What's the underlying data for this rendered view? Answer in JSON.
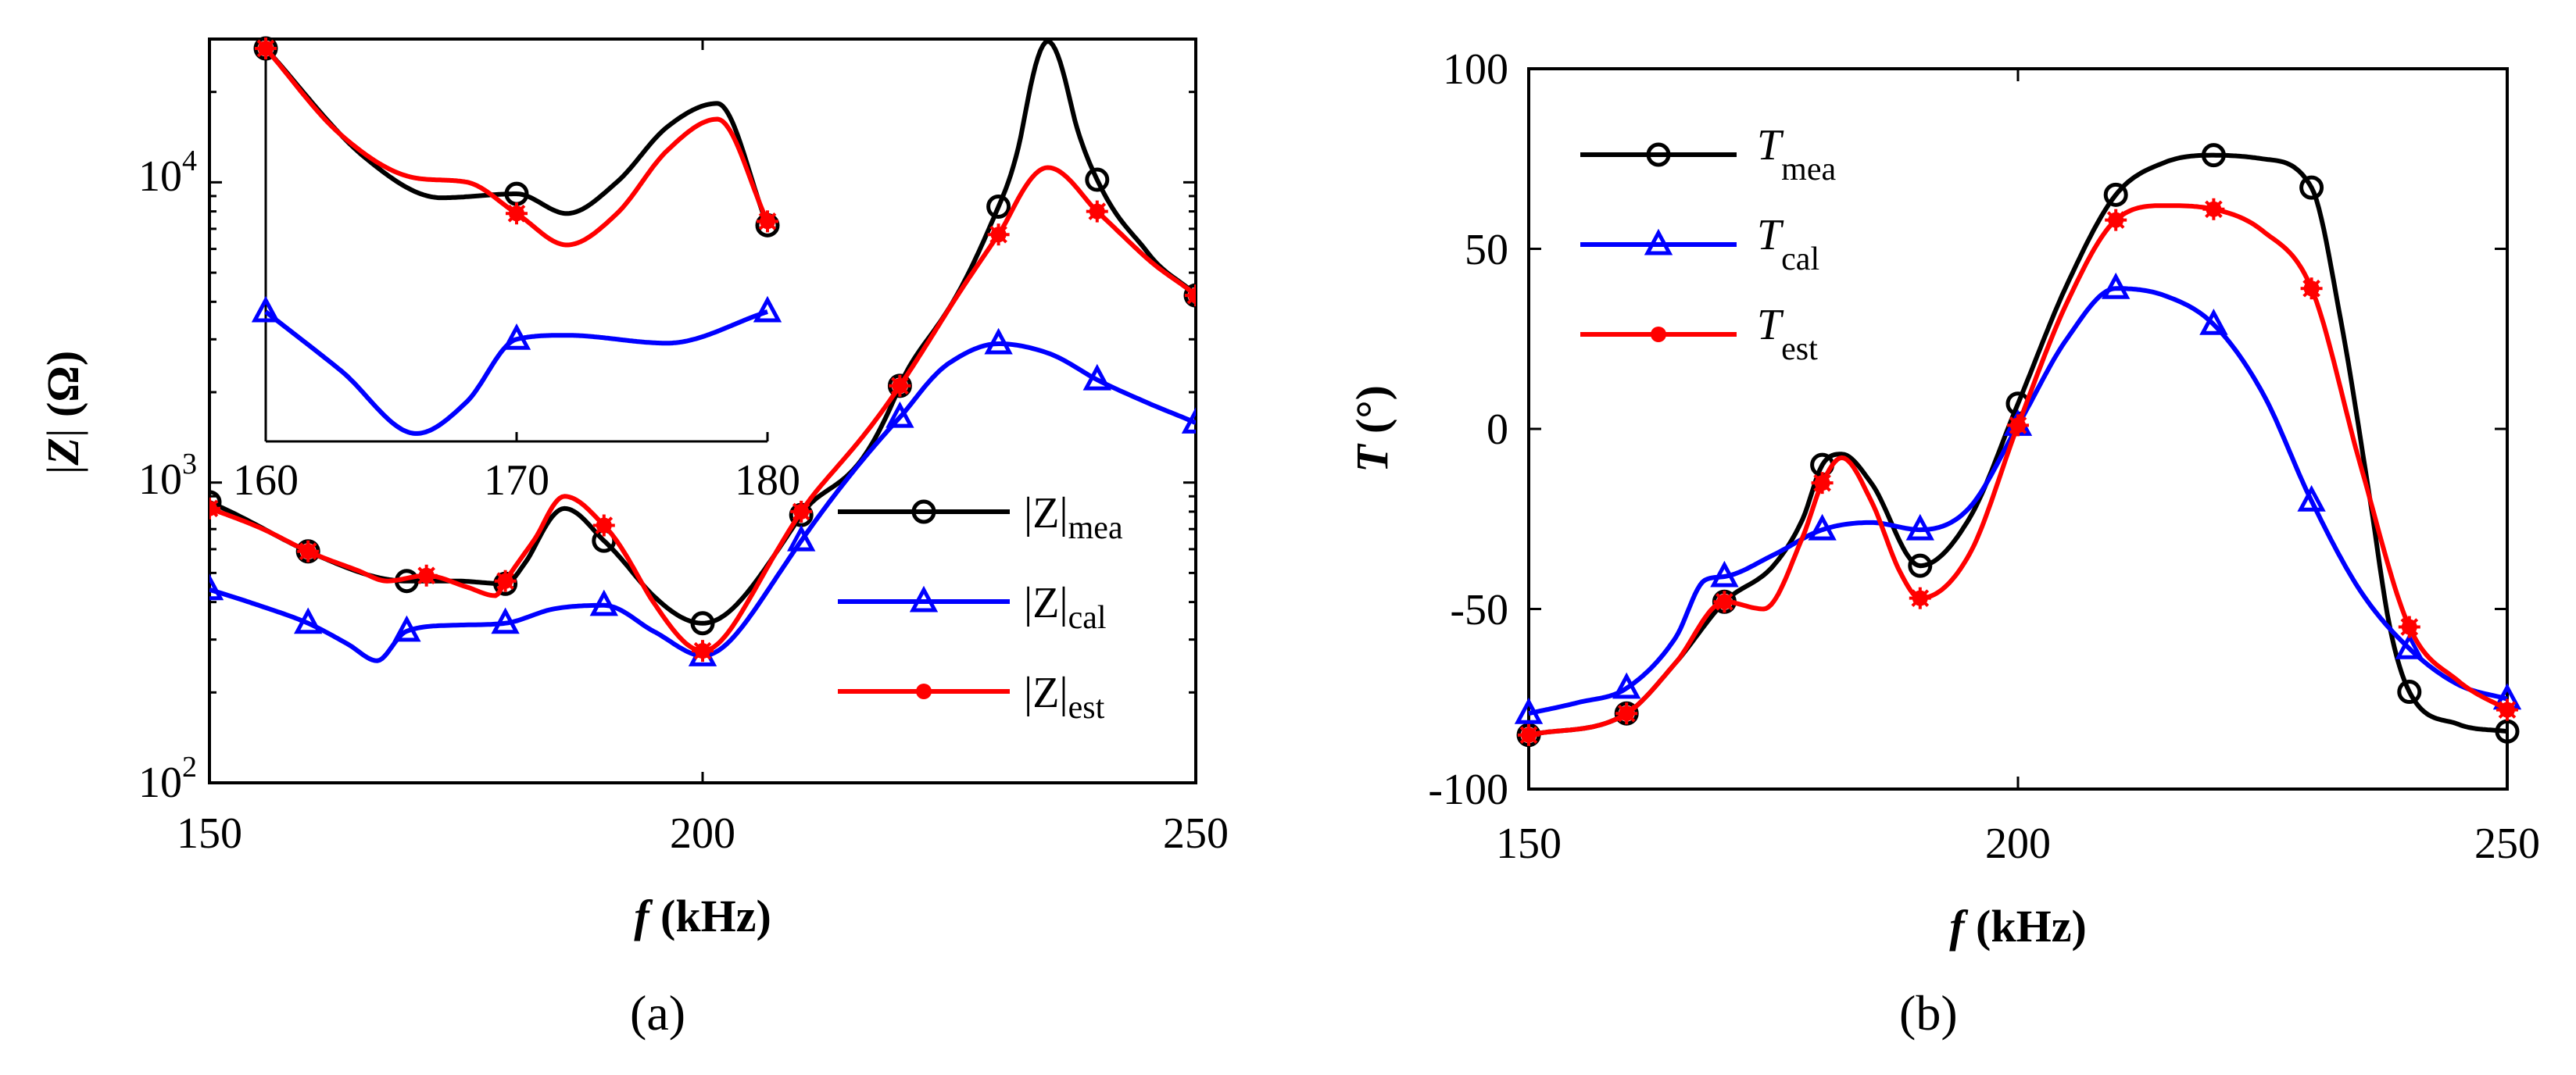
{
  "chart_data": [
    {
      "id": "a",
      "type": "line",
      "panel_label": "(a)",
      "xlabel": "f (kHz)",
      "xlabel_var": "f",
      "xlabel_unit": " (kHz)",
      "ylabel": "|Z| (Ω)",
      "ylabel_var": "Z",
      "ylabel_unit": " (Ω)",
      "yscale": "log",
      "xlim": [
        150,
        250
      ],
      "ylim": [
        100,
        30000
      ],
      "xticks": [
        "150",
        "200",
        "250"
      ],
      "yticks": [
        {
          "base": "10",
          "exp": "2"
        },
        {
          "base": "10",
          "exp": "3"
        },
        {
          "base": "10",
          "exp": "4"
        }
      ],
      "legend_position": "right",
      "series": [
        {
          "name": "|Z|mea",
          "base": "|Z|",
          "sub": "mea",
          "color": "#000000",
          "marker": "circle",
          "x": [
            150,
            160,
            170,
            175,
            180,
            182,
            186,
            190,
            195,
            200,
            210,
            220,
            230,
            232,
            235,
            238,
            240,
            245,
            250
          ],
          "y": [
            860,
            590,
            470,
            470,
            460,
            540,
            820,
            640,
            420,
            340,
            780,
            2100,
            8300,
            13000,
            29500,
            15000,
            10200,
            5900,
            4200
          ],
          "markers": [
            150,
            160,
            170,
            180,
            190,
            200,
            210,
            220,
            230,
            240,
            250
          ]
        },
        {
          "name": "|Z|cal",
          "base": "|Z|",
          "sub": "cal",
          "color": "#0000ff",
          "marker": "triangle",
          "x": [
            150,
            155,
            160,
            164,
            167,
            170,
            175,
            180,
            185,
            190,
            195,
            200,
            210,
            220,
            225,
            230,
            235,
            240,
            245,
            250
          ],
          "y": [
            440,
            390,
            340,
            290,
            255,
            320,
            335,
            340,
            380,
            390,
            320,
            265,
            640,
            1650,
            2500,
            2900,
            2700,
            2200,
            1850,
            1580
          ],
          "markers": [
            150,
            160,
            170,
            180,
            190,
            200,
            210,
            220,
            230,
            240,
            250
          ]
        },
        {
          "name": "|Z|est",
          "base": "|Z|",
          "sub": "est",
          "color": "#ff0000",
          "marker": "asterisk",
          "x": [
            150,
            155,
            160,
            165,
            168,
            172,
            176,
            179,
            180,
            183,
            186,
            190,
            195,
            200,
            210,
            220,
            225,
            230,
            235,
            240,
            245,
            250
          ],
          "y": [
            820,
            710,
            590,
            510,
            470,
            490,
            450,
            420,
            470,
            650,
            900,
            720,
            400,
            275,
            800,
            2100,
            3800,
            6700,
            11200,
            8000,
            5600,
            4200
          ],
          "markers": [
            150,
            160,
            172,
            180,
            190,
            200,
            210,
            220,
            230,
            240,
            250
          ]
        }
      ],
      "inset": {
        "xlim": [
          160,
          180
        ],
        "xticks": [
          "160",
          "170",
          "180"
        ],
        "series": [
          {
            "name": "|Z|mea",
            "color": "#000000",
            "marker": "circle",
            "x": [
              160,
              164,
              167,
              170,
              172,
              174,
              176,
              178,
              180
            ],
            "y": [
              1.0,
              0.72,
              0.62,
              0.63,
              0.58,
              0.66,
              0.8,
              0.86,
              0.55
            ],
            "markers": [
              160,
              170,
              180
            ]
          },
          {
            "name": "|Z|cal",
            "color": "#0000ff",
            "marker": "triangle",
            "x": [
              160,
              163,
              166,
              168,
              170,
              172,
              176,
              180
            ],
            "y": [
              0.33,
              0.18,
              0.02,
              0.1,
              0.26,
              0.27,
              0.25,
              0.33
            ],
            "markers": [
              160,
              170,
              180
            ]
          },
          {
            "name": "|Z|est",
            "color": "#ff0000",
            "marker": "asterisk",
            "x": [
              160,
              163,
              166,
              168,
              170,
              172,
              174,
              176,
              178,
              180
            ],
            "y": [
              1.0,
              0.78,
              0.67,
              0.66,
              0.58,
              0.5,
              0.58,
              0.74,
              0.82,
              0.56
            ],
            "markers": [
              160,
              170,
              180
            ]
          }
        ]
      }
    },
    {
      "id": "b",
      "type": "line",
      "panel_label": "(b)",
      "xlabel": "f (kHz)",
      "xlabel_var": "f",
      "xlabel_unit": " (kHz)",
      "ylabel": "T (°)",
      "ylabel_var": "T",
      "ylabel_unit": " (°)",
      "yscale": "linear",
      "xlim": [
        150,
        250
      ],
      "ylim": [
        -100,
        100
      ],
      "xticks": [
        "150",
        "200",
        "250"
      ],
      "yticks": [
        "100",
        "50",
        "0",
        "-50",
        "-100"
      ],
      "legend_position": "top-left",
      "series": [
        {
          "name": "Tmea",
          "base": "T",
          "sub": "mea",
          "color": "#000000",
          "marker": "circle",
          "x": [
            150,
            160,
            165,
            170,
            175,
            178,
            180,
            182,
            185,
            190,
            195,
            200,
            205,
            210,
            215,
            220,
            225,
            230,
            233,
            236,
            238,
            240,
            245,
            250
          ],
          "y": [
            -85,
            -79,
            -65,
            -48,
            -38,
            -25,
            -10,
            -7,
            -15,
            -38,
            -25,
            7,
            40,
            65,
            74,
            76,
            75,
            67,
            30,
            -20,
            -55,
            -73,
            -82,
            -84
          ],
          "markers": [
            150,
            160,
            170,
            180,
            190,
            200,
            210,
            220,
            230,
            240,
            250
          ]
        },
        {
          "name": "Tcal",
          "base": "T",
          "sub": "cal",
          "color": "#0000ff",
          "marker": "triangle",
          "x": [
            150,
            155,
            160,
            165,
            168,
            170,
            175,
            180,
            185,
            190,
            195,
            200,
            205,
            210,
            215,
            220,
            225,
            230,
            235,
            240,
            245,
            250
          ],
          "y": [
            -79,
            -76,
            -72,
            -58,
            -42,
            -41,
            -35,
            -28,
            -26,
            -28,
            -22,
            1,
            25,
            39,
            37,
            29,
            10,
            -20,
            -45,
            -61,
            -71,
            -75
          ],
          "markers": [
            150,
            160,
            170,
            180,
            190,
            200,
            210,
            220,
            230,
            240,
            250
          ]
        },
        {
          "name": "Test",
          "base": "T",
          "sub": "est",
          "color": "#ff0000",
          "marker": "asterisk",
          "x": [
            150,
            160,
            165,
            170,
            174,
            178,
            180,
            182,
            185,
            188,
            190,
            195,
            200,
            205,
            210,
            215,
            220,
            225,
            230,
            235,
            240,
            245,
            250
          ],
          "y": [
            -85,
            -79,
            -65,
            -48,
            -50,
            -30,
            -15,
            -8,
            -20,
            -40,
            -47,
            -35,
            1,
            35,
            58,
            62,
            61,
            55,
            39,
            -10,
            -55,
            -70,
            -78
          ],
          "markers": [
            150,
            160,
            170,
            180,
            190,
            200,
            210,
            220,
            230,
            240,
            250
          ]
        }
      ]
    }
  ]
}
